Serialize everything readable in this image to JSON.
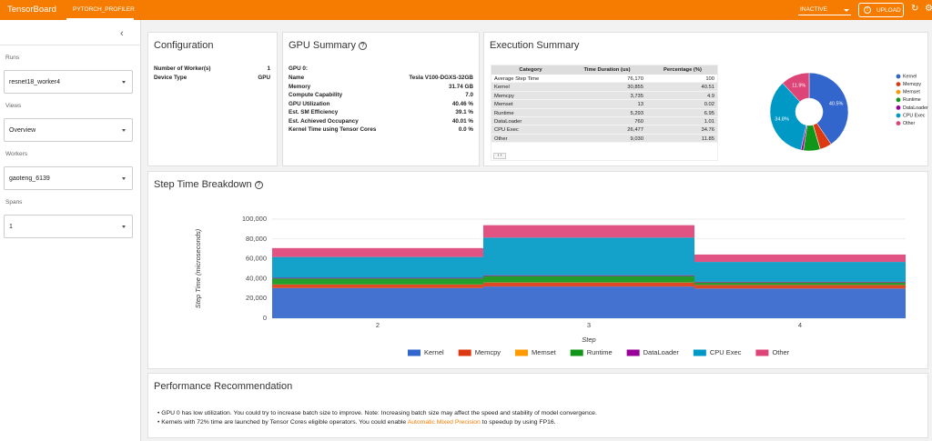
{
  "header": {
    "brand": "TensorBoard",
    "tab": "PYTORCH_PROFILER",
    "status": "INACTIVE",
    "upload": "UPLOAD"
  },
  "sidebar": {
    "fields": [
      {
        "label": "Runs",
        "value": "resnet18_worker4"
      },
      {
        "label": "Views",
        "value": "Overview"
      },
      {
        "label": "Workers",
        "value": "gaoteng_6139"
      },
      {
        "label": "Spans",
        "value": "1"
      }
    ]
  },
  "configuration": {
    "title": "Configuration",
    "rows": [
      [
        "Number of Worker(s)",
        "1"
      ],
      [
        "Device Type",
        "GPU"
      ]
    ]
  },
  "gpu_summary": {
    "title": "GPU Summary",
    "gpu_label": "GPU 0:",
    "rows": [
      [
        "Name",
        "Tesla V100-DGXS-32GB"
      ],
      [
        "Memory",
        "31.74 GB"
      ],
      [
        "Compute Capability",
        "7.0"
      ],
      [
        "GPU Utilization",
        "40.46 %"
      ],
      [
        "Est. SM Efficiency",
        "39.1 %"
      ],
      [
        "Est. Achieved Occupancy",
        "40.01 %"
      ],
      [
        "Kernel Time using Tensor Cores",
        "0.0 %"
      ]
    ]
  },
  "execution_summary": {
    "title": "Execution Summary",
    "table": {
      "columns": [
        "Category",
        "Time Duration (us)",
        "Percentage (%)"
      ],
      "rows": [
        [
          "Average Step Time",
          "76,170",
          "100"
        ],
        [
          "Kernel",
          "30,855",
          "40.51"
        ],
        [
          "Memcpy",
          "3,735",
          "4.9"
        ],
        [
          "Memset",
          "13",
          "0.02"
        ],
        [
          "Runtime",
          "5,293",
          "6.95"
        ],
        [
          "DataLoader",
          "760",
          "1.01"
        ],
        [
          "CPU Exec",
          "26,477",
          "34.76"
        ],
        [
          "Other",
          "9,030",
          "11.85"
        ]
      ]
    },
    "chart": {
      "type": "pie",
      "categories": [
        "Kernel",
        "Memcpy",
        "Memset",
        "Runtime",
        "DataLoader",
        "CPU Exec",
        "Other"
      ],
      "values": [
        40.51,
        4.9,
        0.02,
        6.95,
        1.01,
        34.76,
        11.85
      ],
      "value_labels": [
        "40.5%",
        null,
        null,
        null,
        null,
        "34.8%",
        "11.9%"
      ],
      "colors": [
        "#3366cc",
        "#dc3912",
        "#ff9900",
        "#109618",
        "#990099",
        "#0099c6",
        "#dd4477"
      ],
      "legend": "right"
    }
  },
  "step_time": {
    "title": "Step Time Breakdown",
    "chart": {
      "type": "bar",
      "stacked": true,
      "x_label": "Step",
      "y_label": "Step Time (microseconds)",
      "categories": [
        "2",
        "3",
        "4"
      ],
      "series": [
        {
          "name": "Kernel",
          "color": "#3366cc",
          "values": [
            30500,
            32000,
            30000
          ]
        },
        {
          "name": "Memcpy",
          "color": "#dc3912",
          "values": [
            3500,
            4000,
            3500
          ]
        },
        {
          "name": "Memset",
          "color": "#ff9900",
          "values": [
            100,
            100,
            100
          ]
        },
        {
          "name": "Runtime",
          "color": "#109618",
          "values": [
            6000,
            6500,
            2500
          ]
        },
        {
          "name": "DataLoader",
          "color": "#990099",
          "values": [
            700,
            800,
            700
          ]
        },
        {
          "name": "CPU Exec",
          "color": "#0099c6",
          "values": [
            21000,
            38000,
            20000
          ]
        },
        {
          "name": "Other",
          "color": "#dd4477",
          "values": [
            9000,
            12500,
            7500
          ]
        }
      ],
      "ylim": [
        0,
        100000
      ],
      "yticks": [
        0,
        {
          "value": 20000,
          "label": "20,000"
        },
        {
          "value": 40000,
          "label": "40,000"
        },
        {
          "value": 60000,
          "label": "60,000"
        },
        {
          "value": 80000,
          "label": "80,000"
        },
        {
          "value": 100000,
          "label": "100,000"
        }
      ],
      "grid": true,
      "legend": "bottom"
    }
  },
  "recommendation": {
    "title": "Performance Recommendation",
    "item1": "GPU 0 has low utilization. You could try to increase batch size to improve. Note: Increasing batch size may affect the speed and stability of model convergence.",
    "item2": {
      "before": "Kernels with 72% time are launched by Tensor Cores eligible operators. You could enable ",
      "link": "Automatic Mixed Precision",
      "after": " to speedup by using FP16."
    }
  }
}
